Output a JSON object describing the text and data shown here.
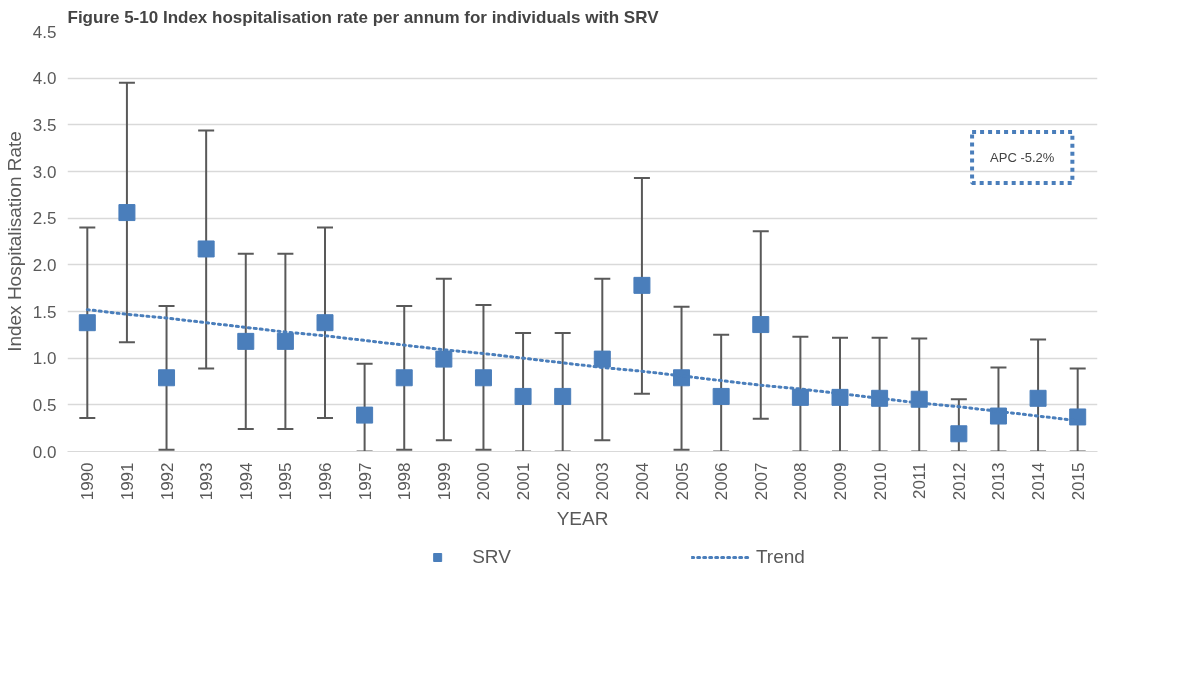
{
  "chart_data": {
    "type": "scatter",
    "title": "Figure 5-10 Index hospitalisation rate per annum for individuals with SRV",
    "xlabel": "YEAR",
    "ylabel": "Index Hospitalisation Rate",
    "categories": [
      "1990",
      "1991",
      "1992",
      "1993",
      "1994",
      "1995",
      "1996",
      "1997",
      "1998",
      "1999",
      "2000",
      "2001",
      "2002",
      "2003",
      "2004",
      "2005",
      "2006",
      "2007",
      "2008",
      "2009",
      "2010",
      "2011",
      "2012",
      "2013",
      "2014",
      "2015"
    ],
    "series": [
      {
        "name": "SRV",
        "marker": "square",
        "color": "#4a7ebb",
        "values": [
          1.38,
          2.56,
          0.79,
          2.17,
          1.18,
          1.18,
          1.38,
          0.39,
          0.79,
          0.99,
          0.79,
          0.59,
          0.59,
          0.99,
          1.78,
          0.79,
          0.59,
          1.36,
          0.58,
          0.58,
          0.57,
          0.56,
          0.19,
          0.38,
          0.57,
          0.37
        ],
        "errors": [
          [
            0.36,
            2.4
          ],
          [
            1.17,
            3.95
          ],
          [
            0.02,
            1.56
          ],
          [
            0.89,
            3.44
          ],
          [
            0.24,
            2.12
          ],
          [
            0.24,
            2.12
          ],
          [
            0.36,
            2.4
          ],
          [
            0,
            0.94
          ],
          [
            0.02,
            1.56
          ],
          [
            0.12,
            1.85
          ],
          [
            0.02,
            1.57
          ],
          [
            0,
            1.27
          ],
          [
            0,
            1.27
          ],
          [
            0.12,
            1.85
          ],
          [
            0.62,
            2.93
          ],
          [
            0.02,
            1.55
          ],
          [
            0,
            1.25
          ],
          [
            0.35,
            2.36
          ],
          [
            0,
            1.23
          ],
          [
            0,
            1.22
          ],
          [
            0,
            1.22
          ],
          [
            0,
            1.21
          ],
          [
            0,
            0.56
          ],
          [
            0,
            0.9
          ],
          [
            0,
            1.2
          ],
          [
            0,
            0.89
          ]
        ]
      },
      {
        "name": "Trend",
        "type": "line",
        "line_style": "dotted",
        "marker": "none",
        "color": "#4a7ebb",
        "values": [
          1.52,
          1.47,
          1.43,
          1.38,
          1.33,
          1.28,
          1.24,
          1.19,
          1.14,
          1.09,
          1.05,
          1.0,
          0.95,
          0.9,
          0.86,
          0.81,
          0.76,
          0.71,
          0.67,
          0.62,
          0.57,
          0.52,
          0.48,
          0.43,
          0.38,
          0.33
        ]
      }
    ],
    "annotations": [
      "APC -5.2%"
    ],
    "ylim": [
      0,
      4.5
    ],
    "yticks": [
      {
        "value": 0,
        "label": "0.0"
      },
      0.5,
      {
        "value": 1,
        "label": "1.0"
      },
      1.5,
      {
        "value": 2,
        "label": "2.0"
      },
      2.5,
      {
        "value": 3,
        "label": "3.0"
      },
      3.5,
      {
        "value": 4,
        "label": "4.0"
      },
      4.5
    ],
    "grid": "y",
    "legend": "bottom"
  }
}
